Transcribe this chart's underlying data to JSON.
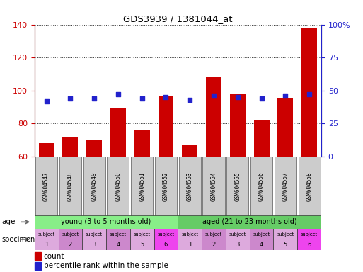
{
  "title": "GDS3939 / 1381044_at",
  "samples": [
    "GSM604547",
    "GSM604548",
    "GSM604549",
    "GSM604550",
    "GSM604551",
    "GSM604552",
    "GSM604553",
    "GSM604554",
    "GSM604555",
    "GSM604556",
    "GSM604557",
    "GSM604558"
  ],
  "counts": [
    68,
    72,
    70,
    89,
    76,
    97,
    67,
    108,
    98,
    82,
    95,
    138
  ],
  "percentile_ranks": [
    42,
    44,
    44,
    47,
    44,
    45,
    43,
    46,
    45,
    44,
    46,
    47
  ],
  "bar_bottom": 60,
  "ylim_left": [
    60,
    140
  ],
  "ylim_right": [
    0,
    100
  ],
  "yticks_left": [
    60,
    80,
    100,
    120,
    140
  ],
  "yticks_right": [
    0,
    25,
    50,
    75,
    100
  ],
  "ytick_labels_right": [
    "0",
    "25",
    "50",
    "75",
    "100%"
  ],
  "bar_color": "#cc0000",
  "dot_color": "#2222cc",
  "age_young_label": "young (3 to 5 months old)",
  "age_aged_label": "aged (21 to 23 months old)",
  "age_young_color": "#88ee88",
  "age_aged_color": "#66cc66",
  "specimen_colors": [
    "#ddaadd",
    "#cc88cc",
    "#ddaadd",
    "#cc88cc",
    "#ddaadd",
    "#ee44ee",
    "#ddaadd",
    "#cc88cc",
    "#ddaadd",
    "#cc88cc",
    "#ddaadd",
    "#ee44ee"
  ],
  "bg_color": "#ffffff",
  "tick_color_left": "#cc0000",
  "tick_color_right": "#2222cc",
  "xticklabel_bg": "#cccccc",
  "grid_linestyle": "dotted",
  "grid_color": "#333333"
}
